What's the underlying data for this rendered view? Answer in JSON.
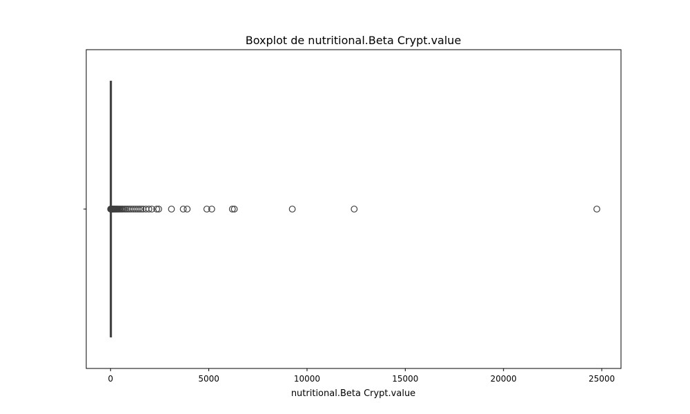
{
  "chart_data": {
    "type": "box",
    "title": "Boxplot de nutritional.Beta Crypt.value",
    "xlabel": "nutritional.Beta Crypt.value",
    "ylabel": "",
    "xlim": [
      -1237,
      25980
    ],
    "xticks": [
      0,
      5000,
      10000,
      15000,
      20000,
      25000
    ],
    "xtick_labels": [
      "0",
      "5000",
      "10000",
      "15000",
      "20000",
      "25000"
    ],
    "orientation": "horizontal",
    "grid": false,
    "box": {
      "q1": 0,
      "median": 0,
      "q3": 0,
      "whisker_low": 0,
      "whisker_high": 0
    },
    "outliers": [
      5,
      10,
      15,
      20,
      30,
      40,
      50,
      60,
      75,
      90,
      105,
      120,
      140,
      160,
      180,
      200,
      230,
      260,
      290,
      320,
      360,
      400,
      450,
      500,
      560,
      620,
      700,
      780,
      860,
      950,
      1050,
      1150,
      1250,
      1350,
      1450,
      1550,
      1650,
      1800,
      1950,
      2100,
      2350,
      2450,
      3100,
      3700,
      3900,
      4900,
      5150,
      6200,
      6300,
      9250,
      12400,
      24750
    ]
  }
}
